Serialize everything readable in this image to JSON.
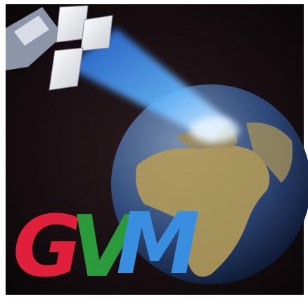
{
  "logo": {
    "letters": [
      "G",
      "V",
      "M"
    ]
  }
}
